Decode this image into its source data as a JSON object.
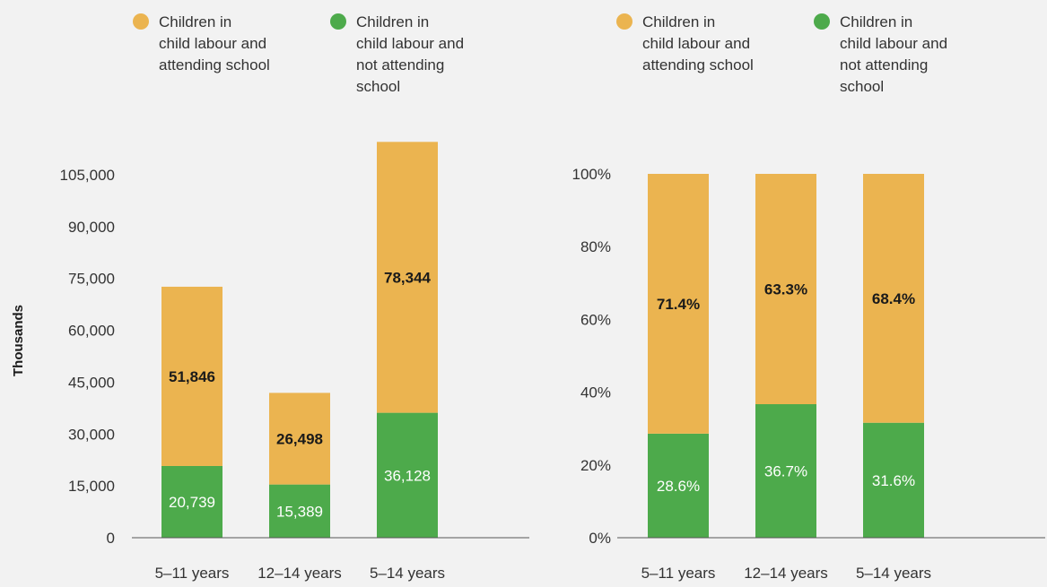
{
  "colors": {
    "background": "#f2f2f2",
    "attending": "#ebb450",
    "not_attending": "#4daa4b",
    "axis_line": "#555555"
  },
  "chart_data": [
    {
      "type": "bar",
      "stacked": true,
      "categories": [
        "5–11 years",
        "12–14 years",
        "5–14 years"
      ],
      "series": [
        {
          "name": "Children in child labour and not attending school",
          "color": "#4daa4b",
          "values": [
            20739,
            15389,
            36128
          ],
          "labels": [
            "20,739",
            "15,389",
            "36,128"
          ]
        },
        {
          "name": "Children in child labour and attending school",
          "color": "#ebb450",
          "values": [
            51846,
            26498,
            78344
          ],
          "labels": [
            "51,846",
            "26,498",
            "78,344"
          ]
        }
      ],
      "legend": {
        "placement": "top",
        "items": [
          {
            "color": "#ebb450",
            "lines": [
              "Children in",
              "child labour and",
              "attending school"
            ]
          },
          {
            "color": "#4daa4b",
            "lines": [
              "Children in",
              "child labour and",
              "not attending",
              "school"
            ]
          }
        ]
      },
      "ylabel": "Thousands",
      "ylim": [
        0,
        120000
      ],
      "yticks": [
        0,
        15000,
        30000,
        45000,
        60000,
        75000,
        90000,
        105000
      ],
      "ytick_labels": [
        "0",
        "15,000",
        "30,000",
        "45,000",
        "60,000",
        "75,000",
        "90,000",
        "105,000"
      ],
      "grid": false
    },
    {
      "type": "bar",
      "stacked": true,
      "categories": [
        "5–11 years",
        "12–14 years",
        "5–14 years"
      ],
      "series": [
        {
          "name": "Children in child labour and not attending school",
          "color": "#4daa4b",
          "values": [
            28.6,
            36.7,
            31.6
          ],
          "labels": [
            "28.6%",
            "36.7%",
            "31.6%"
          ]
        },
        {
          "name": "Children in child labour and attending school",
          "color": "#ebb450",
          "values": [
            71.4,
            63.3,
            68.4
          ],
          "labels": [
            "71.4%",
            "63.3%",
            "68.4%"
          ]
        }
      ],
      "legend": {
        "placement": "top",
        "items": [
          {
            "color": "#ebb450",
            "lines": [
              "Children in",
              "child labour and",
              "attending school"
            ]
          },
          {
            "color": "#4daa4b",
            "lines": [
              "Children in",
              "child labour and",
              "not attending",
              "school"
            ]
          }
        ]
      },
      "ylabel": "",
      "ylim": [
        0,
        100
      ],
      "yticks": [
        0,
        20,
        40,
        60,
        80,
        100
      ],
      "ytick_labels": [
        "0%",
        "20%",
        "40%",
        "60%",
        "80%",
        "100%"
      ],
      "grid": false
    }
  ]
}
